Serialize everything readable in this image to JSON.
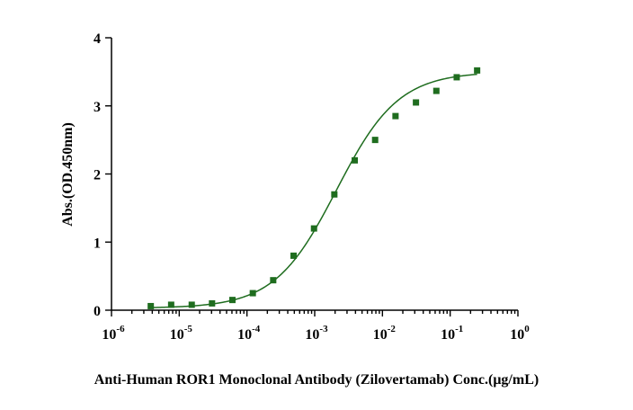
{
  "chart_data": {
    "type": "scatter",
    "title": "",
    "xlabel": "Anti-Human ROR1 Monoclonal Antibody (Zilovertamab) Conc.(μg/mL)",
    "ylabel": "Abs.(OD.450nm)",
    "x_scale": "log",
    "xlim": [
      1e-06,
      1
    ],
    "ylim": [
      0,
      4
    ],
    "x_ticks": [
      {
        "base": "10",
        "exp": "-6"
      },
      {
        "base": "10",
        "exp": "-5"
      },
      {
        "base": "10",
        "exp": "-4"
      },
      {
        "base": "10",
        "exp": "-3"
      },
      {
        "base": "10",
        "exp": "-2"
      },
      {
        "base": "10",
        "exp": "-1"
      },
      {
        "base": "10",
        "exp": "0"
      }
    ],
    "y_ticks": [
      "0",
      "1",
      "2",
      "3",
      "4"
    ],
    "series": [
      {
        "name": "Zilovertamab",
        "color": "#1f6d1f",
        "marker": "square",
        "x": [
          3.8e-06,
          7.6e-06,
          1.53e-05,
          3.05e-05,
          6.1e-05,
          0.000122,
          0.000244,
          0.000488,
          0.000977,
          0.00195,
          0.0039,
          0.0078,
          0.0156,
          0.03125,
          0.0625,
          0.125,
          0.25
        ],
        "y": [
          0.06,
          0.08,
          0.08,
          0.1,
          0.15,
          0.25,
          0.44,
          0.8,
          1.2,
          1.7,
          2.2,
          2.5,
          2.85,
          3.05,
          3.22,
          3.42,
          3.52
        ]
      }
    ],
    "fit": {
      "type": "4PL",
      "color": "#1f6d1f",
      "bottom": 0.03,
      "top": 3.5,
      "ec50": 0.0021,
      "hill": 0.95,
      "x_range": [
        3.8e-06,
        0.25
      ]
    }
  }
}
